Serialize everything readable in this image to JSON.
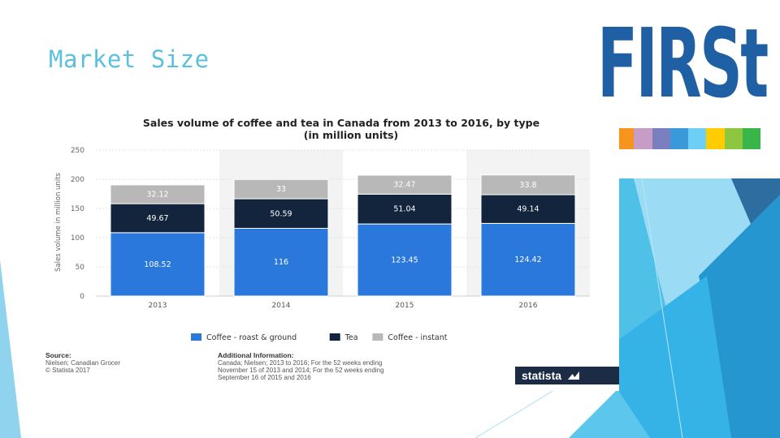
{
  "slide": {
    "title": "Market Size"
  },
  "logo": {
    "text": "FIRSt",
    "color": "#1f5fa3",
    "stripe_colors": [
      "#f26522",
      "#f7941d",
      "#c79dc7",
      "#7a7fbf",
      "#3a9ad9",
      "#6dcff6",
      "#ffcc00",
      "#8dc63f",
      "#39b54a"
    ]
  },
  "chart_data": {
    "type": "bar",
    "stacked": true,
    "title": "Sales volume of coffee and tea in Canada from 2013 to 2016, by type",
    "subtitle": "(in million units)",
    "xlabel": "",
    "ylabel": "Sales volume in million units",
    "ylim": [
      0,
      250
    ],
    "yticks": [
      0,
      50,
      100,
      150,
      200,
      250
    ],
    "categories": [
      "2013",
      "2014",
      "2015",
      "2016"
    ],
    "series": [
      {
        "name": "Coffee - roast & ground",
        "color": "#2b78dc",
        "values": [
          108.52,
          116,
          123.45,
          124.42
        ],
        "labels": [
          "108.52",
          "116",
          "123.45",
          "124.42"
        ]
      },
      {
        "name": "Tea",
        "color": "#13253d",
        "values": [
          49.67,
          50.59,
          51.04,
          49.14
        ],
        "labels": [
          "49.67",
          "50.59",
          "51.04",
          "49.14"
        ]
      },
      {
        "name": "Coffee - instant",
        "color": "#b8b8b8",
        "values": [
          32.12,
          33,
          32.47,
          33.8
        ],
        "labels": [
          "32.12",
          "33",
          "32.47",
          "33.8"
        ]
      }
    ],
    "grid": true,
    "legend_position": "bottom"
  },
  "footer": {
    "source_header": "Source:",
    "source_lines": [
      "Nielsen; Canadian Grocer",
      "© Statista 2017"
    ],
    "info_header": "Additional Information:",
    "info_lines": [
      "Canada; Nielsen; 2013 to 2016; For the 52 weeks ending",
      "November 15 of 2013 and 2014; For the 52 weeks ending",
      "September 16 of 2015 and 2016"
    ],
    "brand": "statista"
  }
}
